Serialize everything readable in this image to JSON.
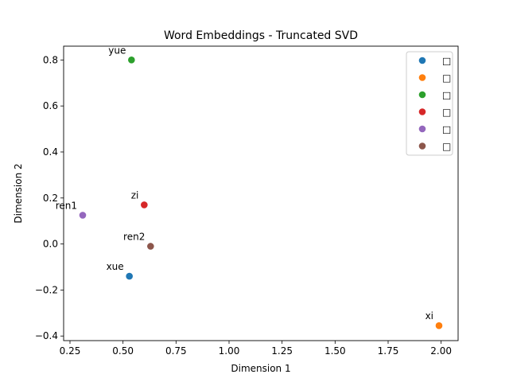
{
  "chart_data": {
    "type": "scatter",
    "title": "Word Embeddings - Truncated SVD",
    "xlabel": "Dimension 1",
    "ylabel": "Dimension 2",
    "xlim": [
      0.22,
      2.08
    ],
    "ylim": [
      -0.42,
      0.86
    ],
    "xticks": [
      "0.25",
      "0.50",
      "0.75",
      "1.00",
      "1.25",
      "1.50",
      "1.75",
      "2.00"
    ],
    "yticks": [
      "−0.4",
      "−0.2",
      "0.0",
      "0.2",
      "0.4",
      "0.6",
      "0.8"
    ],
    "xtick_values": [
      0.25,
      0.5,
      0.75,
      1.0,
      1.25,
      1.5,
      1.75,
      2.0
    ],
    "ytick_values": [
      -0.4,
      -0.2,
      0.0,
      0.2,
      0.4,
      0.6,
      0.8
    ],
    "grid": false,
    "legend_position": "top-right",
    "series": [
      {
        "name": "□",
        "label": "xue",
        "x": 0.53,
        "y": -0.14,
        "color": "#1f77b4"
      },
      {
        "name": "□",
        "label": "xi",
        "x": 1.99,
        "y": -0.355,
        "color": "#ff7f0e"
      },
      {
        "name": "□",
        "label": "yue",
        "x": 0.54,
        "y": 0.8,
        "color": "#2ca02c"
      },
      {
        "name": "□",
        "label": "zi",
        "x": 0.6,
        "y": 0.17,
        "color": "#d62728"
      },
      {
        "name": "□",
        "label": "ren1",
        "x": 0.31,
        "y": 0.125,
        "color": "#9467bd"
      },
      {
        "name": "□",
        "label": "ren2",
        "x": 0.63,
        "y": -0.01,
        "color": "#8c564b"
      }
    ]
  }
}
